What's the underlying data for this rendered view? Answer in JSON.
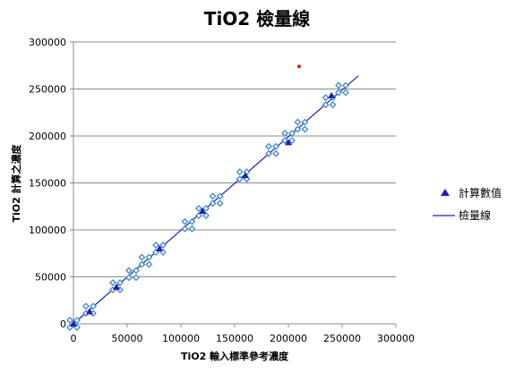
{
  "chart_data": {
    "type": "scatter",
    "title": "TiO2 檢量線",
    "xlabel": "TiO2 輸入標準參考濃度",
    "ylabel": "TiO2 計算之濃度",
    "xlim": [
      0,
      300000
    ],
    "ylim": [
      0,
      300000
    ],
    "x_ticks": [
      "0",
      "50000",
      "100000",
      "150000",
      "200000",
      "250000",
      "300000"
    ],
    "y_ticks": [
      "0",
      "50000",
      "100000",
      "150000",
      "200000",
      "250000",
      "300000"
    ],
    "grid": "horizontal",
    "legend_position": "right",
    "series": [
      {
        "name": "計算數值",
        "marker": "triangle",
        "color": "#1f1fb4",
        "points": [
          [
            0,
            0
          ],
          [
            15000,
            13000
          ],
          [
            40000,
            39000
          ],
          [
            80000,
            80000
          ],
          [
            120000,
            120000
          ],
          [
            160000,
            158000
          ],
          [
            200000,
            193000
          ],
          [
            240000,
            243000
          ]
        ]
      },
      {
        "name": "",
        "marker": "diamond-ring",
        "color": "#4a90c8",
        "points": [
          [
            0,
            0
          ],
          [
            15000,
            15000
          ],
          [
            40000,
            40000
          ],
          [
            55000,
            53000
          ],
          [
            67000,
            67000
          ],
          [
            80000,
            80000
          ],
          [
            107000,
            105000
          ],
          [
            120000,
            119000
          ],
          [
            133000,
            132000
          ],
          [
            158000,
            158000
          ],
          [
            185000,
            185000
          ],
          [
            200000,
            199000
          ],
          [
            212000,
            211000
          ],
          [
            238000,
            237000
          ],
          [
            250000,
            250000
          ]
        ]
      },
      {
        "name": "",
        "marker": "dot",
        "color": "#e02020",
        "points": [
          [
            210000,
            274000
          ]
        ]
      },
      {
        "name": "檢量線",
        "marker": "line",
        "color": "#1f1fb4",
        "points": [
          [
            0,
            0
          ],
          [
            265000,
            264000
          ]
        ]
      }
    ]
  }
}
